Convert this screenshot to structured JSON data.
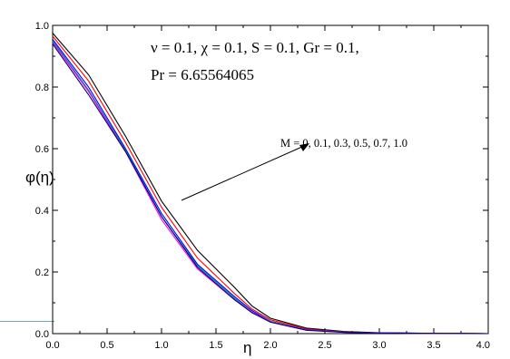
{
  "chart_data": {
    "type": "line",
    "title": "",
    "xlabel": "η",
    "ylabel": "φ(η)",
    "xlim": [
      0.0,
      4.0
    ],
    "ylim": [
      0.0,
      1.0
    ],
    "x_ticks": [
      "0.0",
      "0.5",
      "1.0",
      "1.5",
      "2.0",
      "2.5",
      "3.0",
      "3.5",
      "4.0"
    ],
    "y_ticks": [
      "0.0",
      "0.2",
      "0.4",
      "0.6",
      "0.8",
      "1.0"
    ],
    "grid": false,
    "annotations": {
      "params_line1": "ν = 0.1, χ = 0.1, S = 0.1, Gr = 0.1,",
      "params_line2": "Pr = 6.65564065",
      "arrow_label": "M = 0, 0.1, 0.3, 0.5, 0.7, 1.0"
    },
    "x": [
      0.0,
      0.33,
      0.67,
      1.0,
      1.33,
      1.67,
      1.83,
      2.0,
      2.33,
      2.67,
      3.0,
      3.5,
      4.0
    ],
    "series": [
      {
        "color": "#000000",
        "values": [
          0.975,
          0.84,
          0.64,
          0.43,
          0.27,
          0.15,
          0.09,
          0.05,
          0.018,
          0.007,
          0.003,
          0.001,
          0.0
        ]
      },
      {
        "color": "#ff0000",
        "values": [
          0.965,
          0.82,
          0.62,
          0.41,
          0.245,
          0.13,
          0.08,
          0.045,
          0.015,
          0.006,
          0.002,
          0.001,
          0.0
        ]
      },
      {
        "color": "#0000ff",
        "values": [
          0.955,
          0.8,
          0.6,
          0.39,
          0.225,
          0.12,
          0.075,
          0.04,
          0.013,
          0.005,
          0.002,
          0.001,
          0.0
        ]
      },
      {
        "color": "#008080",
        "values": [
          0.95,
          0.79,
          0.595,
          0.38,
          0.22,
          0.115,
          0.07,
          0.04,
          0.012,
          0.005,
          0.002,
          0.001,
          0.0
        ]
      },
      {
        "color": "#ff00ff",
        "values": [
          0.945,
          0.785,
          0.59,
          0.37,
          0.21,
          0.11,
          0.07,
          0.038,
          0.012,
          0.004,
          0.002,
          0.001,
          0.0
        ]
      },
      {
        "color": "#000080",
        "values": [
          0.94,
          0.775,
          0.59,
          0.38,
          0.215,
          0.11,
          0.068,
          0.037,
          0.011,
          0.004,
          0.002,
          0.001,
          0.0
        ]
      }
    ]
  }
}
